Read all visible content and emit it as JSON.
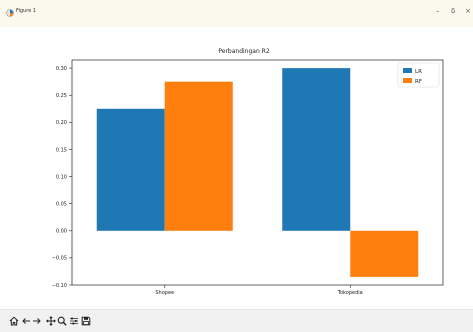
{
  "window": {
    "title": "Figure 1",
    "buttons": {
      "minimize": "–",
      "maximize": "δ",
      "close": "×"
    }
  },
  "toolbar": {
    "icons": [
      "home-icon",
      "back-arrow-icon",
      "forward-arrow-icon",
      "pan-icon",
      "zoom-icon",
      "configure-subplots-icon",
      "save-icon"
    ]
  },
  "chart_data": {
    "type": "bar",
    "title": "Perbandingan R2",
    "xlabel": "",
    "ylabel": "",
    "categories": [
      "Shopee",
      "Tokopedia"
    ],
    "series": [
      {
        "name": "LR",
        "values": [
          0.225,
          0.3
        ],
        "color": "#1f77b4"
      },
      {
        "name": "RF",
        "values": [
          0.275,
          -0.085
        ],
        "color": "#ff7f0e"
      }
    ],
    "ylim": [
      -0.1,
      0.315
    ],
    "yticks": [
      0.3,
      0.25,
      0.2,
      0.15,
      0.1,
      0.05,
      0.0,
      -0.05,
      -0.1
    ],
    "ytick_labels": [
      "0.30",
      "0.25",
      "0.20",
      "0.15",
      "0.10",
      "0.05",
      "0.00",
      "−0.05",
      "−0.10"
    ],
    "grid": false,
    "legend_position": "top-right"
  }
}
